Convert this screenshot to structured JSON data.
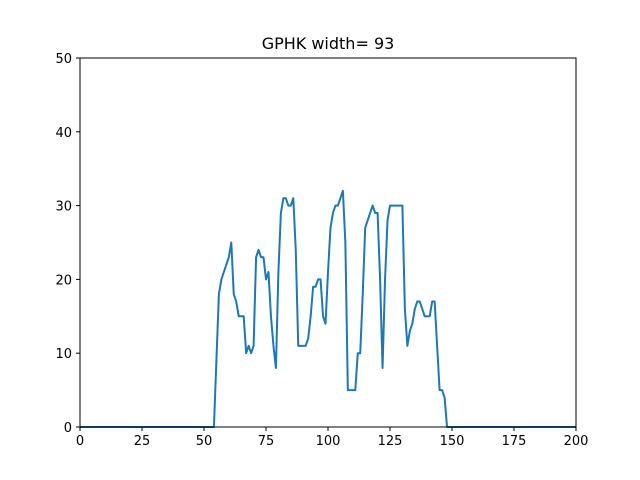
{
  "chart_data": {
    "type": "line",
    "title": "GPHK width= 93",
    "xlabel": "",
    "ylabel": "",
    "xlim": [
      0,
      200
    ],
    "ylim": [
      0,
      50
    ],
    "xticks": [
      0,
      25,
      50,
      75,
      100,
      125,
      150,
      175,
      200
    ],
    "yticks": [
      0,
      10,
      20,
      30,
      40,
      50
    ],
    "grid": false,
    "legend": "none",
    "colors": {
      "series": "#1f77b4",
      "axes": "#000000",
      "background": "#ffffff"
    },
    "series": [
      {
        "x": [
          0,
          54,
          55,
          56,
          57,
          58,
          59,
          60,
          61,
          62,
          63,
          64,
          65,
          66,
          67,
          68,
          69,
          70,
          71,
          72,
          73,
          74,
          75,
          76,
          77,
          78,
          79,
          80,
          81,
          82,
          83,
          84,
          85,
          86,
          87,
          88,
          89,
          90,
          91,
          92,
          93,
          94,
          95,
          96,
          97,
          98,
          99,
          100,
          101,
          102,
          103,
          104,
          105,
          106,
          107,
          108,
          109,
          110,
          111,
          112,
          113,
          114,
          115,
          116,
          117,
          118,
          119,
          120,
          121,
          122,
          123,
          124,
          125,
          126,
          127,
          128,
          129,
          130,
          131,
          132,
          133,
          134,
          135,
          136,
          137,
          138,
          139,
          140,
          141,
          142,
          143,
          144,
          145,
          146,
          147,
          148,
          200
        ],
        "y": [
          0,
          0,
          9,
          18,
          20,
          21,
          22,
          23,
          25,
          18,
          17,
          15,
          15,
          15,
          10,
          11,
          10,
          11,
          23,
          24,
          23,
          23,
          20,
          21,
          15,
          11,
          8,
          21,
          29,
          31,
          31,
          30,
          30,
          31,
          24,
          11,
          11,
          11,
          11,
          12,
          15,
          19,
          19,
          20,
          20,
          15,
          14,
          21,
          27,
          29,
          30,
          30,
          31,
          32,
          25,
          5,
          5,
          5,
          5,
          10,
          10,
          18,
          27,
          28,
          29,
          30,
          29,
          29,
          20,
          8,
          20,
          28,
          30,
          30,
          30,
          30,
          30,
          30,
          16,
          11,
          13,
          14,
          16,
          17,
          17,
          16,
          15,
          15,
          15,
          17,
          17,
          11,
          5,
          5,
          4,
          0,
          0
        ]
      }
    ]
  }
}
